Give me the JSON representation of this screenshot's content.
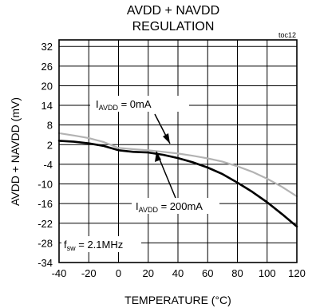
{
  "chart_data": {
    "type": "line",
    "title_lines": [
      "AVDD + NAVDD",
      "REGULATION"
    ],
    "tag": "toc12",
    "xlabel": "TEMPERATURE (°C)",
    "ylabel": "AVDD + NAVDD  (mV)",
    "xlim": [
      -40,
      120
    ],
    "ylim": [
      -34,
      34
    ],
    "xticks": [
      -40,
      -20,
      0,
      20,
      40,
      60,
      80,
      100,
      120
    ],
    "yticks": [
      32,
      26,
      20,
      14,
      8,
      2,
      -4,
      -10,
      -16,
      -22,
      -28,
      -34
    ],
    "grid": true,
    "series": [
      {
        "color": "#b3b3b3",
        "x": [
          -40,
          -30,
          -20,
          -10,
          0,
          10,
          20,
          30,
          40,
          50,
          60,
          70,
          80,
          90,
          100,
          110,
          120
        ],
        "y": [
          5.5,
          4.8,
          4.0,
          2.8,
          1.0,
          0.6,
          0.3,
          -0.2,
          -0.7,
          -1.4,
          -2.2,
          -3.2,
          -4.6,
          -6.3,
          -8.4,
          -10.9,
          -13.8
        ]
      },
      {
        "color": "#000000",
        "x": [
          -40,
          -30,
          -20,
          -10,
          0,
          10,
          20,
          30,
          40,
          50,
          60,
          70,
          80,
          90,
          100,
          110,
          120
        ],
        "y": [
          3.2,
          2.9,
          2.4,
          1.6,
          0.3,
          -0.2,
          -0.4,
          -1.1,
          -2.1,
          -3.4,
          -5.0,
          -7.0,
          -9.6,
          -12.4,
          -15.6,
          -19.2,
          -23.0
        ]
      }
    ],
    "annotations": [
      {
        "main": "I",
        "sub": "AVDD",
        "rest": " = 0mA"
      },
      {
        "main": "I",
        "sub": "AVDD",
        "rest": " = 200mA"
      },
      {
        "main": "f",
        "sub": "sw",
        "rest": " = 2.1MHz"
      }
    ]
  }
}
